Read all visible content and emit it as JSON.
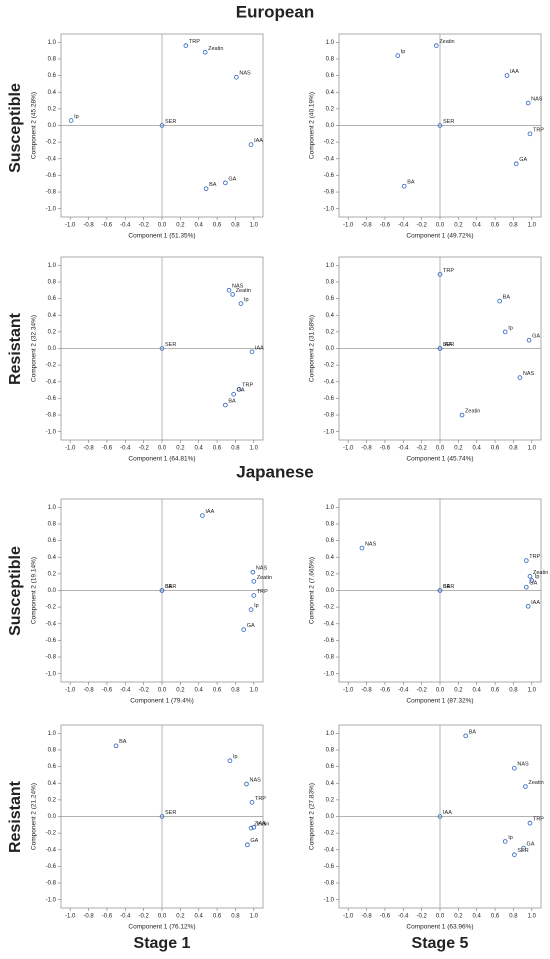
{
  "layout": {
    "groups": [
      "European",
      "Japanese"
    ],
    "rows": [
      "Susceptible",
      "Resistant"
    ],
    "columns": [
      "Stage 1",
      "Stage 5"
    ]
  },
  "chart_data": [
    {
      "type": "scatter",
      "color": "#4472c4",
      "x_label": "Component 1 (51.35%)",
      "y_label": "Component 2 (45.28%)",
      "xlim": [
        -1.1,
        1.1
      ],
      "ylim": [
        -1.1,
        1.1
      ],
      "xticks": [
        {
          "value": -1,
          "label": "-1.0"
        },
        -0.8,
        -0.6,
        -0.4,
        -0.2,
        {
          "value": 0,
          "label": "0.0"
        },
        0.2,
        0.4,
        0.6,
        0.8,
        {
          "value": 1,
          "label": "1.0"
        }
      ],
      "yticks": [
        {
          "value": -1,
          "label": "-1.0"
        },
        -0.8,
        -0.6,
        -0.4,
        -0.2,
        {
          "value": 0,
          "label": "0.0"
        },
        0.2,
        0.4,
        0.6,
        0.8,
        {
          "value": 1,
          "label": "1.0"
        }
      ],
      "point_labels": [
        "TRP",
        "Zeatin",
        "NAS",
        "Ip",
        "SER",
        "IAA",
        "GA",
        "BA"
      ],
      "x": [
        0.26,
        0.47,
        0.81,
        -0.99,
        0,
        0.97,
        0.69,
        0.48
      ],
      "y": [
        0.96,
        0.88,
        0.58,
        0.06,
        0,
        -0.23,
        -0.69,
        -0.76
      ]
    },
    {
      "type": "scatter",
      "color": "#4472c4",
      "x_label": "Component 1 (49.72%)",
      "y_label": "Component 2 (40.19%)",
      "xlim": [
        -1.1,
        1.1
      ],
      "ylim": [
        -1.1,
        1.1
      ],
      "xticks": [
        {
          "value": -1,
          "label": "-1.0"
        },
        -0.8,
        -0.6,
        -0.4,
        -0.2,
        {
          "value": 0,
          "label": "0.0"
        },
        0.2,
        0.4,
        0.6,
        0.8,
        {
          "value": 1,
          "label": "1.0"
        }
      ],
      "yticks": [
        {
          "value": -1,
          "label": "-1.0"
        },
        -0.8,
        -0.6,
        -0.4,
        -0.2,
        {
          "value": 0,
          "label": "0.0"
        },
        0.2,
        0.4,
        0.6,
        0.8,
        {
          "value": 1,
          "label": "1.0"
        }
      ],
      "point_labels": [
        "Zeatin",
        "Ip",
        "IAA",
        "NAS",
        "SER",
        "TRP",
        "GA",
        "BA"
      ],
      "x": [
        -0.04,
        -0.46,
        0.73,
        0.96,
        0,
        0.98,
        0.83,
        -0.39
      ],
      "y": [
        0.96,
        0.84,
        0.6,
        0.27,
        0,
        -0.1,
        -0.46,
        -0.73
      ]
    },
    {
      "type": "scatter",
      "color": "#4472c4",
      "x_label": "Component 1 (64.81%)",
      "y_label": "Component 2 (32.34%)",
      "xlim": [
        -1.1,
        1.1
      ],
      "ylim": [
        -1.1,
        1.1
      ],
      "xticks": [
        {
          "value": -1,
          "label": "-1.0"
        },
        -0.8,
        -0.6,
        -0.4,
        -0.2,
        {
          "value": 0,
          "label": "0.0"
        },
        0.2,
        0.4,
        0.6,
        0.8,
        {
          "value": 1,
          "label": "1.0"
        }
      ],
      "yticks": [
        {
          "value": -1,
          "label": "-1.0"
        },
        -0.8,
        -0.6,
        -0.4,
        -0.2,
        {
          "value": 0,
          "label": "0.0"
        },
        0.2,
        0.4,
        0.6,
        0.8,
        {
          "value": 1,
          "label": "1.0"
        }
      ],
      "point_labels": [
        "NAS",
        "Zeatin",
        "Ip",
        "SER",
        "IAA",
        "TRP",
        "GA",
        "BA"
      ],
      "x": [
        0.73,
        0.77,
        0.86,
        0,
        0.98,
        0.84,
        0.78,
        0.69
      ],
      "y": [
        0.7,
        0.65,
        0.54,
        0,
        -0.04,
        -0.49,
        -0.55,
        -0.68
      ]
    },
    {
      "type": "scatter",
      "color": "#4472c4",
      "x_label": "Component 1 (45.74%)",
      "y_label": "Component 2 (31.58%)",
      "xlim": [
        -1.1,
        1.1
      ],
      "ylim": [
        -1.1,
        1.1
      ],
      "xticks": [
        {
          "value": -1,
          "label": "-1.0"
        },
        -0.8,
        -0.6,
        -0.4,
        -0.2,
        {
          "value": 0,
          "label": "0.0"
        },
        0.2,
        0.4,
        0.6,
        0.8,
        {
          "value": 1,
          "label": "1.0"
        }
      ],
      "yticks": [
        {
          "value": -1,
          "label": "-1.0"
        },
        -0.8,
        -0.6,
        -0.4,
        -0.2,
        {
          "value": 0,
          "label": "0.0"
        },
        0.2,
        0.4,
        0.6,
        0.8,
        {
          "value": 1,
          "label": "1.0"
        }
      ],
      "point_labels": [
        "TRP",
        "BA",
        "Ip",
        "GA",
        "SER",
        "IAA",
        "NAS",
        "Zeatin"
      ],
      "x": [
        0,
        0.65,
        0.71,
        0.97,
        0,
        0,
        0.87,
        0.24
      ],
      "y": [
        0.89,
        0.57,
        0.2,
        0.1,
        0,
        0,
        -0.35,
        -0.8
      ]
    },
    {
      "type": "scatter",
      "color": "#4472c4",
      "x_label": "Component 1 (79.4%)",
      "y_label": "Component 2 (19.14%)",
      "xlim": [
        -1.1,
        1.1
      ],
      "ylim": [
        -1.1,
        1.1
      ],
      "xticks": [
        {
          "value": -1,
          "label": "-1.0"
        },
        -0.8,
        -0.6,
        -0.4,
        -0.2,
        {
          "value": 0,
          "label": "0.0"
        },
        0.2,
        0.4,
        0.6,
        0.8,
        {
          "value": 1,
          "label": "1.0"
        }
      ],
      "yticks": [
        {
          "value": -1,
          "label": "-1.0"
        },
        -0.8,
        -0.6,
        -0.4,
        -0.2,
        {
          "value": 0,
          "label": "0.0"
        },
        0.2,
        0.4,
        0.6,
        0.8,
        {
          "value": 1,
          "label": "1.0"
        }
      ],
      "point_labels": [
        "IAA",
        "NAS",
        "Zeatin",
        "SER",
        "BA",
        "TRP",
        "Ip",
        "GA"
      ],
      "x": [
        0.44,
        0.99,
        1,
        0,
        0,
        1,
        0.97,
        0.89
      ],
      "y": [
        0.9,
        0.22,
        0.11,
        0,
        0,
        -0.06,
        -0.23,
        -0.47
      ]
    },
    {
      "type": "scatter",
      "color": "#4472c4",
      "x_label": "Component 1 (87.32%)",
      "y_label": "Component 2 (7.665%)",
      "xlim": [
        -1.1,
        1.1
      ],
      "ylim": [
        -1.1,
        1.1
      ],
      "xticks": [
        {
          "value": -1,
          "label": "-1.0"
        },
        -0.8,
        -0.6,
        -0.4,
        -0.2,
        {
          "value": 0,
          "label": "0.0"
        },
        0.2,
        0.4,
        0.6,
        0.8,
        {
          "value": 1,
          "label": "1.0"
        }
      ],
      "yticks": [
        {
          "value": -1,
          "label": "-1.0"
        },
        -0.8,
        -0.6,
        -0.4,
        -0.2,
        {
          "value": 0,
          "label": "0.0"
        },
        0.2,
        0.4,
        0.6,
        0.8,
        {
          "value": 1,
          "label": "1.0"
        }
      ],
      "point_labels": [
        "NAS",
        "TRP",
        "Zeatin",
        "Ip",
        "GA",
        "SER",
        "BA",
        "IAA"
      ],
      "x": [
        -0.85,
        0.94,
        0.98,
        1,
        0.94,
        0,
        0,
        0.96
      ],
      "y": [
        0.51,
        0.36,
        0.17,
        0.12,
        0.04,
        0,
        0,
        -0.19
      ]
    },
    {
      "type": "scatter",
      "color": "#4472c4",
      "x_label": "Component 1 (76.12%)",
      "y_label": "Component 2 (21.24%)",
      "xlim": [
        -1.1,
        1.1
      ],
      "ylim": [
        -1.1,
        1.1
      ],
      "xticks": [
        {
          "value": -1,
          "label": "-1.0"
        },
        -0.8,
        -0.6,
        -0.4,
        -0.2,
        {
          "value": 0,
          "label": "0.0"
        },
        0.2,
        0.4,
        0.6,
        0.8,
        {
          "value": 1,
          "label": "1.0"
        }
      ],
      "yticks": [
        {
          "value": -1,
          "label": "-1.0"
        },
        -0.8,
        -0.6,
        -0.4,
        -0.2,
        {
          "value": 0,
          "label": "0.0"
        },
        0.2,
        0.4,
        0.6,
        0.8,
        {
          "value": 1,
          "label": "1.0"
        }
      ],
      "point_labels": [
        "BA",
        "Ip",
        "NAS",
        "TRP",
        "SER",
        "Zeatin",
        "IAA",
        "GA"
      ],
      "x": [
        -0.5,
        0.74,
        0.92,
        0.98,
        0,
        0.97,
        1,
        0.93
      ],
      "y": [
        0.85,
        0.67,
        0.39,
        0.17,
        0,
        -0.14,
        -0.13,
        -0.34
      ]
    },
    {
      "type": "scatter",
      "color": "#4472c4",
      "x_label": "Component 1 (63.96%)",
      "y_label": "Component 2 (27.83%)",
      "xlim": [
        -1.1,
        1.1
      ],
      "ylim": [
        -1.1,
        1.1
      ],
      "xticks": [
        {
          "value": -1,
          "label": "-1.0"
        },
        -0.8,
        -0.6,
        -0.4,
        -0.2,
        {
          "value": 0,
          "label": "0.0"
        },
        0.2,
        0.4,
        0.6,
        0.8,
        {
          "value": 1,
          "label": "1.0"
        }
      ],
      "yticks": [
        {
          "value": -1,
          "label": "-1.0"
        },
        -0.8,
        -0.6,
        -0.4,
        -0.2,
        {
          "value": 0,
          "label": "0.0"
        },
        0.2,
        0.4,
        0.6,
        0.8,
        {
          "value": 1,
          "label": "1.0"
        }
      ],
      "point_labels": [
        "BA",
        "NAS",
        "Zeatin",
        "IAA",
        "TRP",
        "GA",
        "Ip",
        "SER"
      ],
      "x": [
        0.28,
        0.81,
        0.93,
        0,
        0.98,
        0.91,
        0.71,
        0.81
      ],
      "y": [
        0.97,
        0.58,
        0.36,
        0,
        -0.08,
        -0.38,
        -0.3,
        -0.46
      ]
    }
  ]
}
